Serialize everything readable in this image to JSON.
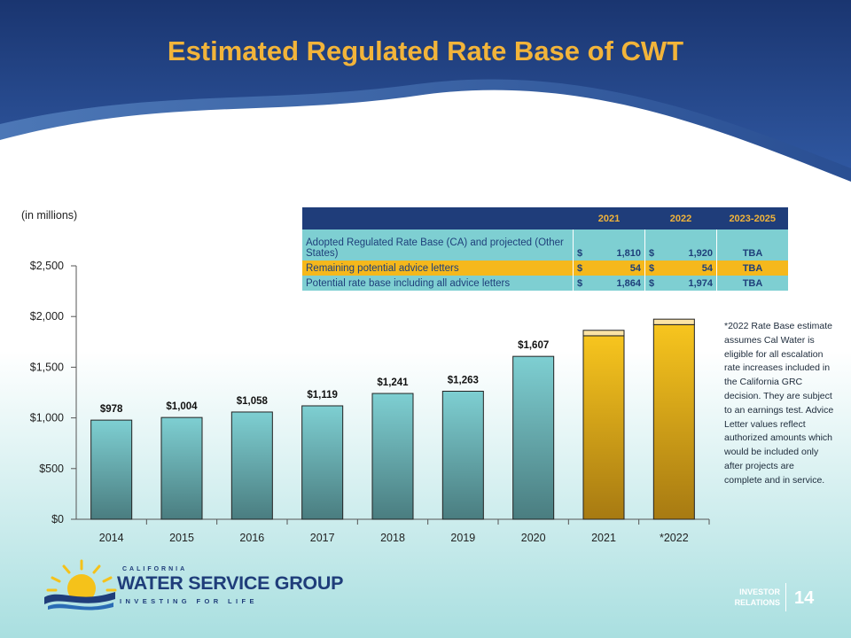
{
  "slide": {
    "title": "Estimated Regulated Rate Base of CWT",
    "units_label": "(in millions)",
    "footnote": "*2022 Rate Base estimate assumes Cal Water is eligible for all escalation rate increases included in the California GRC decision. They are subject to an earnings test. Advice Letter values reflect authorized amounts which would be included only after projects are complete and in service.",
    "page_number": "14",
    "section_label_line1": "INVESTOR",
    "section_label_line2": "RELATIONS"
  },
  "logo": {
    "line1": "CALIFORNIA",
    "line2": "WATER SERVICE GROUP",
    "line3": "INVESTING FOR LIFE"
  },
  "table": {
    "headers": [
      "",
      "2021",
      "2022",
      "2023-2025"
    ],
    "rows": [
      {
        "label": "Adopted Regulated Rate Base (CA) and projected (Other States)",
        "v2021": "1,810",
        "v2022": "1,920",
        "v2023": "TBA"
      },
      {
        "label": "Remaining potential advice letters",
        "v2021": "54",
        "v2022": "54",
        "v2023": "TBA"
      },
      {
        "label": "Potential rate base including all advice letters",
        "v2021": "1,864",
        "v2022": "1,974",
        "v2023": "TBA"
      }
    ],
    "currency": "$"
  },
  "colors": {
    "navy": "#1f3d7a",
    "gold": "#f2b43a",
    "teal": "#7ecfd2",
    "bar_teal_bottom": "#4a7d80",
    "bar_gold_top": "#f7c51e",
    "bar_gold_bottom": "#a77a12",
    "advice_cap": "#fbe3a4"
  },
  "chart_data": {
    "type": "bar",
    "categories": [
      "2014",
      "2015",
      "2016",
      "2017",
      "2018",
      "2019",
      "2020",
      "2021",
      "*2022"
    ],
    "series": [
      {
        "values": [
          978,
          1004,
          1058,
          1119,
          1241,
          1263,
          1607,
          1810,
          1920
        ]
      },
      {
        "values": [
          0,
          0,
          0,
          0,
          0,
          0,
          0,
          54,
          54
        ]
      }
    ],
    "data_labels": [
      "$978",
      "$1,004",
      "$1,058",
      "$1,119",
      "$1,241",
      "$1,263",
      "$1,607",
      "",
      ""
    ],
    "ytick_values": [
      0,
      500,
      1000,
      1500,
      2000,
      2500
    ],
    "ytick_labels": [
      "$0",
      "$500",
      "$1,000",
      "$1,500",
      "$2,000",
      "$2,500"
    ],
    "ylim": [
      0,
      2500
    ],
    "highlight_categories": [
      "2021",
      "*2022"
    ],
    "grid": false,
    "title": "",
    "xlabel": "",
    "ylabel": ""
  }
}
